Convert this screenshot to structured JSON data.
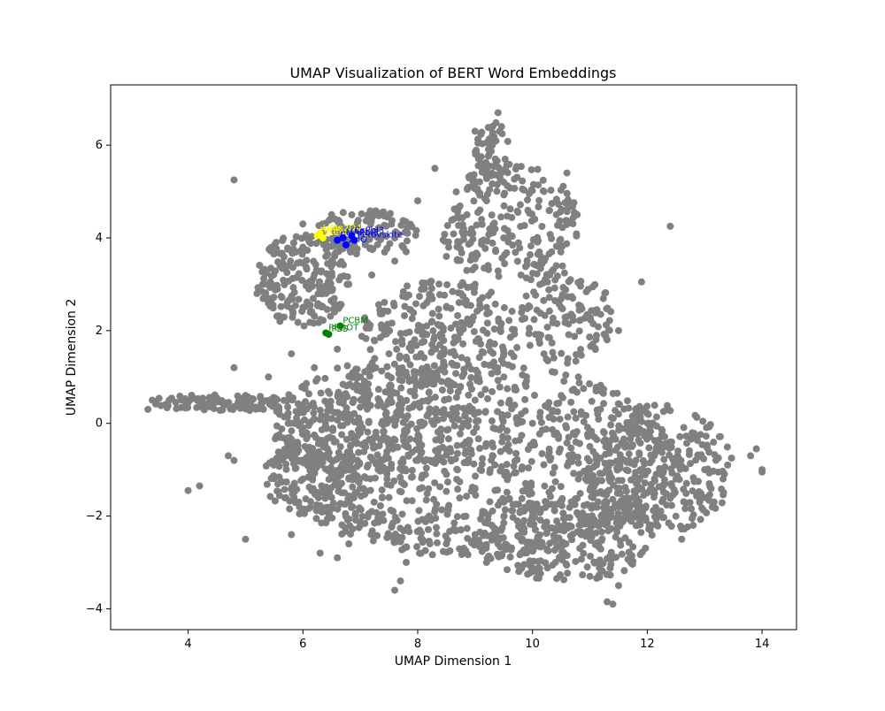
{
  "chart_data": {
    "type": "scatter",
    "title": "UMAP Visualization of BERT Word Embeddings",
    "xlabel": "UMAP Dimension 1",
    "ylabel": "UMAP Dimension 2",
    "xlim": [
      2.65,
      14.6
    ],
    "ylim": [
      -4.45,
      7.3
    ],
    "xticks": [
      4,
      6,
      8,
      10,
      12,
      14
    ],
    "yticks": [
      -4,
      -2,
      0,
      2,
      4,
      6
    ],
    "grid": false,
    "legend": "none",
    "colors": {
      "background": "#808080",
      "yellow": "#ffff00",
      "blue": "#0000ff",
      "green": "#008000"
    },
    "background_series": {
      "color": "#808080",
      "description_points": [
        [
          3.3,
          0.3
        ],
        [
          3.6,
          0.4
        ],
        [
          4.0,
          0.45
        ],
        [
          4.5,
          0.55
        ],
        [
          5.0,
          0.6
        ],
        [
          5.5,
          0.5
        ],
        [
          6.0,
          0.3
        ],
        [
          6.5,
          0.1
        ],
        [
          7.0,
          -0.2
        ],
        [
          7.5,
          -0.5
        ],
        [
          8.0,
          -0.8
        ],
        [
          8.5,
          -1.1
        ],
        [
          9.0,
          -1.4
        ],
        [
          9.5,
          -1.7
        ],
        [
          10.0,
          -2.0
        ],
        [
          10.5,
          -2.3
        ],
        [
          11.0,
          -2.1
        ],
        [
          11.5,
          -1.8
        ],
        [
          12.0,
          -1.5
        ],
        [
          12.5,
          -1.2
        ],
        [
          13.0,
          -1.0
        ],
        [
          13.4,
          -0.9
        ],
        [
          13.8,
          -0.7
        ],
        [
          14.0,
          -1.0
        ],
        [
          5.8,
          -0.5
        ],
        [
          6.2,
          -1.0
        ],
        [
          6.8,
          -1.2
        ],
        [
          7.5,
          -1.6
        ],
        [
          8.2,
          -2.0
        ],
        [
          9.0,
          -2.4
        ],
        [
          9.8,
          -2.8
        ],
        [
          10.4,
          -3.0
        ],
        [
          11.0,
          -3.3
        ],
        [
          11.5,
          -3.5
        ],
        [
          10.0,
          -3.2
        ],
        [
          9.2,
          -3.0
        ],
        [
          8.5,
          -2.6
        ],
        [
          7.8,
          -2.3
        ],
        [
          7.2,
          -1.9
        ],
        [
          6.5,
          -1.6
        ],
        [
          6.0,
          -1.2
        ],
        [
          5.6,
          -0.8
        ],
        [
          7.0,
          1.0
        ],
        [
          7.5,
          1.5
        ],
        [
          8.0,
          2.0
        ],
        [
          8.5,
          2.5
        ],
        [
          9.0,
          3.0
        ],
        [
          8.2,
          1.0
        ],
        [
          9.0,
          0.5
        ],
        [
          10.0,
          0.0
        ],
        [
          11.0,
          -0.5
        ],
        [
          12.0,
          -0.3
        ],
        [
          12.5,
          -0.8
        ],
        [
          11.5,
          0.2
        ],
        [
          10.5,
          0.6
        ],
        [
          9.5,
          1.0
        ],
        [
          10.2,
          1.5
        ],
        [
          10.8,
          1.0
        ],
        [
          11.3,
          1.8
        ],
        [
          10.5,
          2.5
        ],
        [
          9.8,
          3.2
        ],
        [
          9.5,
          4.0
        ],
        [
          9.2,
          4.8
        ],
        [
          9.5,
          5.2
        ],
        [
          10.2,
          5.0
        ],
        [
          10.6,
          5.4
        ],
        [
          9.3,
          6.0
        ],
        [
          9.0,
          6.3
        ],
        [
          9.4,
          6.7
        ],
        [
          8.3,
          5.5
        ],
        [
          8.0,
          4.8
        ],
        [
          8.8,
          4.2
        ],
        [
          8.5,
          3.6
        ],
        [
          7.6,
          3.5
        ],
        [
          7.2,
          3.2
        ],
        [
          6.8,
          3.0
        ],
        [
          6.4,
          3.6
        ],
        [
          6.0,
          3.8
        ],
        [
          5.6,
          3.4
        ],
        [
          5.3,
          3.0
        ],
        [
          5.2,
          2.8
        ],
        [
          5.6,
          2.2
        ],
        [
          6.0,
          2.5
        ],
        [
          6.4,
          2.8
        ],
        [
          6.8,
          4.2
        ],
        [
          7.2,
          4.5
        ],
        [
          6.5,
          4.5
        ],
        [
          6.0,
          4.3
        ],
        [
          7.6,
          4.0
        ],
        [
          7.8,
          3.7
        ],
        [
          5.8,
          1.5
        ],
        [
          6.2,
          1.2
        ],
        [
          6.6,
          1.6
        ],
        [
          6.0,
          0.8
        ],
        [
          5.4,
          1.0
        ],
        [
          4.8,
          1.2
        ],
        [
          12.4,
          4.25
        ],
        [
          4.8,
          5.25
        ],
        [
          4.0,
          -1.45
        ],
        [
          4.2,
          -1.35
        ],
        [
          5.0,
          -2.5
        ],
        [
          5.8,
          -2.4
        ],
        [
          6.3,
          -2.8
        ],
        [
          6.6,
          -2.9
        ],
        [
          7.6,
          -3.6
        ],
        [
          7.7,
          -3.4
        ],
        [
          11.4,
          -3.9
        ],
        [
          11.3,
          -3.85
        ],
        [
          4.7,
          -0.7
        ],
        [
          4.8,
          -0.8
        ],
        [
          13.9,
          -0.55
        ],
        [
          14.0,
          -1.05
        ],
        [
          11.9,
          3.05
        ],
        [
          11.5,
          2.0
        ],
        [
          10.3,
          3.2
        ],
        [
          7.8,
          -3.0
        ],
        [
          7.0,
          -2.2
        ],
        [
          6.8,
          -2.6
        ],
        [
          9.2,
          2.5
        ],
        [
          8.8,
          0.0
        ],
        [
          9.6,
          -0.6
        ],
        [
          10.8,
          -1.2
        ],
        [
          12.2,
          -2.0
        ],
        [
          12.8,
          -2.2
        ],
        [
          12.6,
          -2.5
        ],
        [
          13.0,
          -1.6
        ]
      ]
    },
    "series": [
      {
        "color": "#ffff00",
        "points": [
          {
            "x": 6.25,
            "y": 4.05,
            "label": "HIHP"
          },
          {
            "x": 6.3,
            "y": 4.1,
            "label": "LiMn2O4"
          },
          {
            "x": 6.35,
            "y": 4.0,
            "label": "LiCoO2"
          }
        ]
      },
      {
        "color": "#0000ff",
        "points": [
          {
            "x": 6.6,
            "y": 3.95,
            "label": "Cs"
          },
          {
            "x": 6.7,
            "y": 4.0,
            "label": "MAPbI3"
          },
          {
            "x": 6.75,
            "y": 3.85,
            "label": "ZnO"
          },
          {
            "x": 6.85,
            "y": 4.05,
            "label": "CsPbI3"
          },
          {
            "x": 6.9,
            "y": 3.95,
            "label": "Perovskite"
          }
        ]
      },
      {
        "color": "#008000",
        "points": [
          {
            "x": 6.65,
            "y": 2.1,
            "label": "PCBM"
          },
          {
            "x": 6.4,
            "y": 1.95,
            "label": "PEDOT"
          },
          {
            "x": 6.45,
            "y": 1.92,
            "label": "PSS"
          }
        ]
      }
    ]
  }
}
